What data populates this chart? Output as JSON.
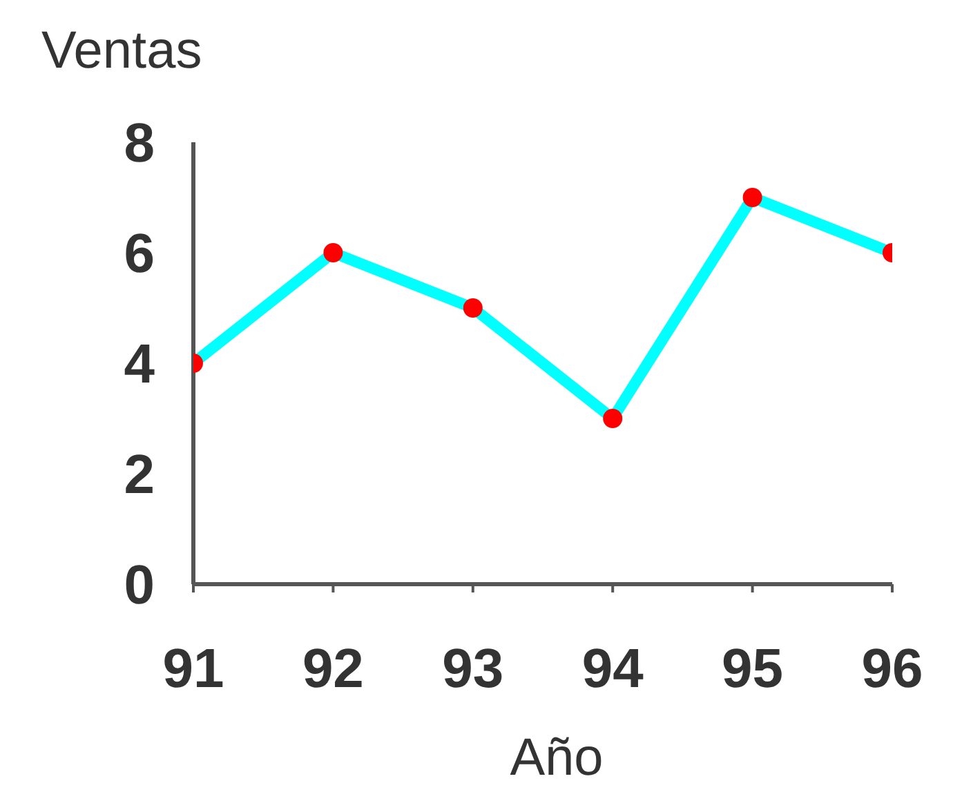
{
  "chart_data": {
    "type": "line",
    "xlabel": "Año",
    "ylabel": "Ventas",
    "x": [
      91,
      92,
      93,
      94,
      95,
      96
    ],
    "xlim": [
      91,
      96
    ],
    "xticks": [
      91,
      92,
      93,
      94,
      95,
      96
    ],
    "ylim": [
      0,
      8
    ],
    "yticks": [
      0,
      2,
      4,
      6,
      8
    ],
    "series": [
      {
        "color": "#00ffff",
        "values": [
          4,
          6,
          5,
          3,
          7,
          6
        ]
      }
    ],
    "marker": "circle",
    "grid": false,
    "legend": false
  }
}
